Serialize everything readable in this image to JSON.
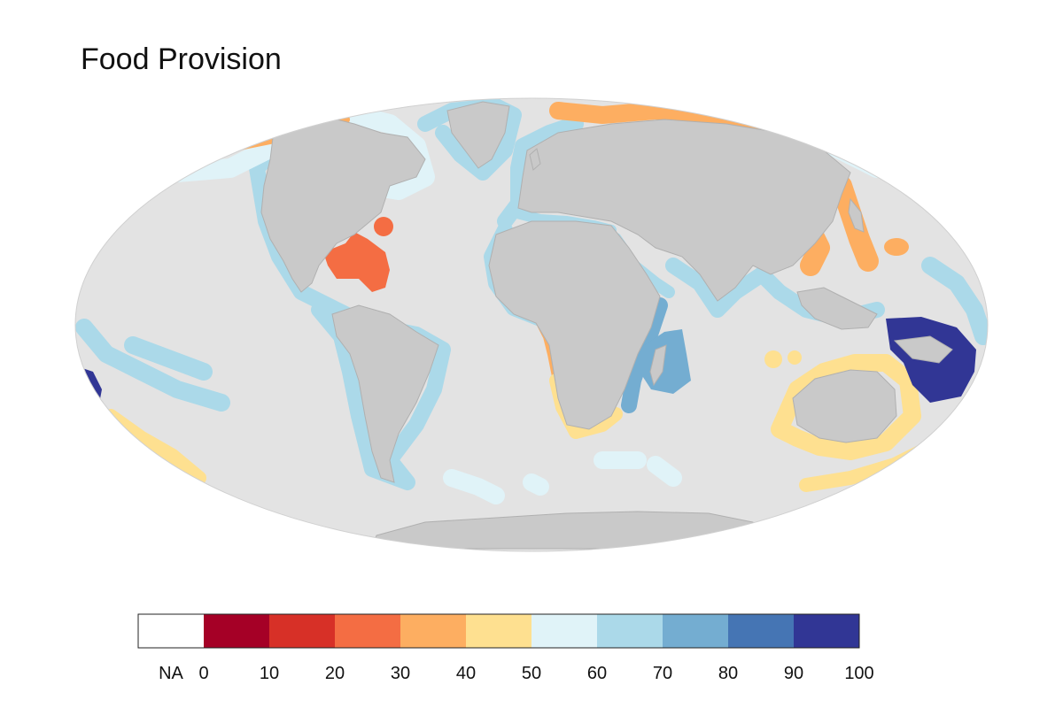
{
  "title": "Food Provision",
  "map": {
    "projection": "mollweide",
    "ocean_color": "#e3e3e3",
    "land_color": "#c9c9c9",
    "land_border_color": "#b0b0b0",
    "regions": [
      {
        "name": "Arctic Russia coast",
        "score_range": "30-40",
        "color": "#fdae61"
      },
      {
        "name": "East Asia coast",
        "score_range": "30-40",
        "color": "#fdae61"
      },
      {
        "name": "Black Sea",
        "score_range": "30-40",
        "color": "#fdae61"
      },
      {
        "name": "Alaska / Bering coast",
        "score_range": "30-40",
        "color": "#fdae61"
      },
      {
        "name": "West Africa (Gulf of Guinea)",
        "score_range": "30-40",
        "color": "#fdae61"
      },
      {
        "name": "Caribbean",
        "score_range": "20-30",
        "color": "#f46d43"
      },
      {
        "name": "Bermuda",
        "score_range": "20-30",
        "color": "#f46d43"
      },
      {
        "name": "South Africa / Namibia",
        "score_range": "40-50",
        "color": "#fee090"
      },
      {
        "name": "Australia",
        "score_range": "40-50",
        "color": "#fee090"
      },
      {
        "name": "New Zealand",
        "score_range": "40-50",
        "color": "#fee090"
      },
      {
        "name": "Chile / South Pacific",
        "score_range": "40-50",
        "color": "#fee090"
      },
      {
        "name": "East Africa / Mozambique Channel",
        "score_range": "70-80",
        "color": "#74add1"
      },
      {
        "name": "Madagascar & Mascarene islands",
        "score_range": "70-80",
        "color": "#74add1"
      },
      {
        "name": "Papua New Guinea / Solomon Is.",
        "score_range": "90-100",
        "color": "#313695"
      },
      {
        "name": "Pacific islands (west)",
        "score_range": "90-100",
        "color": "#313695"
      },
      {
        "name": "Most other EEZs",
        "score_range": "60-70",
        "color": "#abd9e9"
      },
      {
        "name": "Southern oceanic islands",
        "score_range": "50-60",
        "color": "#e0f3f8"
      }
    ]
  },
  "legend": {
    "na_label": "NA",
    "na_color": "#ffffff",
    "bins": [
      {
        "from": 0,
        "to": 10,
        "color": "#a50026"
      },
      {
        "from": 10,
        "to": 20,
        "color": "#d73027"
      },
      {
        "from": 20,
        "to": 30,
        "color": "#f46d43"
      },
      {
        "from": 30,
        "to": 40,
        "color": "#fdae61"
      },
      {
        "from": 40,
        "to": 50,
        "color": "#fee090"
      },
      {
        "from": 50,
        "to": 60,
        "color": "#e0f3f8"
      },
      {
        "from": 60,
        "to": 70,
        "color": "#abd9e9"
      },
      {
        "from": 70,
        "to": 80,
        "color": "#74add1"
      },
      {
        "from": 80,
        "to": 90,
        "color": "#4575b4"
      },
      {
        "from": 90,
        "to": 100,
        "color": "#313695"
      }
    ],
    "tick_labels": [
      "0",
      "10",
      "20",
      "30",
      "40",
      "50",
      "60",
      "70",
      "80",
      "90",
      "100"
    ]
  }
}
